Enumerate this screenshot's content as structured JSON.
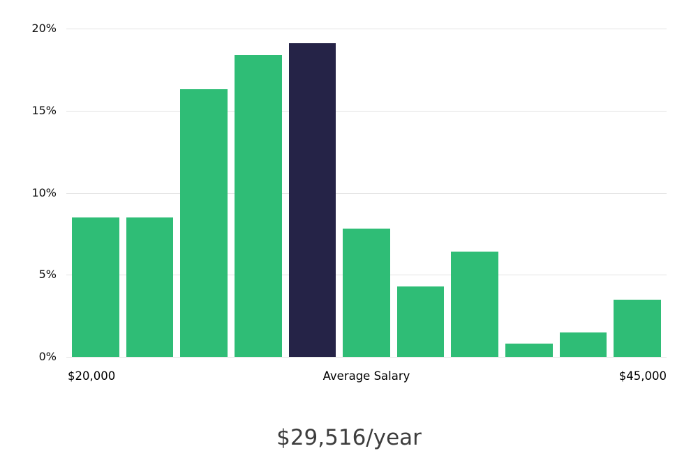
{
  "chart_data": {
    "type": "bar",
    "title": "",
    "values": [
      8.5,
      8.5,
      16.3,
      18.4,
      19.1,
      7.8,
      4.3,
      6.4,
      0.8,
      1.5,
      3.5
    ],
    "highlight_index": 4,
    "bar_color": "#2fbd76",
    "highlight_color": "#252347",
    "ylim": [
      0,
      20
    ],
    "grid": true,
    "y_ticks": [
      {
        "value": 0,
        "label": "0%"
      },
      {
        "value": 5,
        "label": "5%"
      },
      {
        "value": 10,
        "label": "10%"
      },
      {
        "value": 15,
        "label": "15%"
      },
      {
        "value": 20,
        "label": "20%"
      }
    ],
    "x_labels": {
      "left": "$20,000",
      "center": "Average Salary",
      "right": "$45,000"
    },
    "caption": "$29,516/year"
  }
}
